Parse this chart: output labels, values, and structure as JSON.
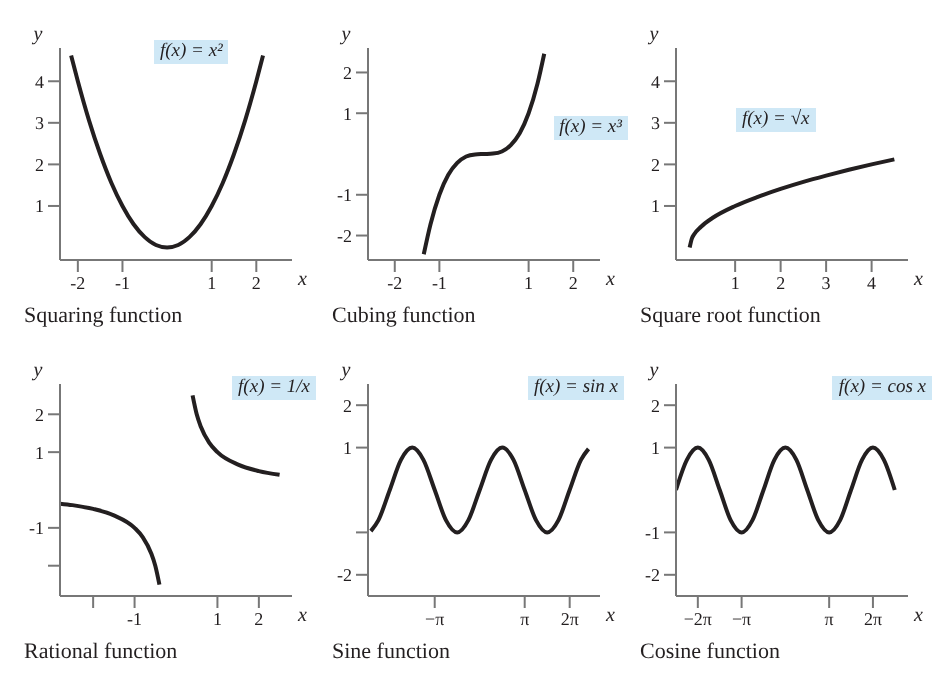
{
  "chart_data": [
    {
      "type": "line",
      "title": "Squaring function",
      "xlabel": "x",
      "ylabel": "y",
      "annotations": [
        "f(x) = x²"
      ],
      "xlim": [
        -2.4,
        2.8
      ],
      "ylim": [
        -0.3,
        4.8
      ],
      "xticks": [
        -2,
        -1,
        1,
        2
      ],
      "yticks": [
        1,
        2,
        3,
        4
      ],
      "series": [
        {
          "color": "#231f20",
          "x": [
            -2.15,
            -2,
            -1.75,
            -1.5,
            -1.25,
            -1,
            -0.75,
            -0.5,
            -0.25,
            0,
            0.25,
            0.5,
            0.75,
            1,
            1.25,
            1.5,
            1.75,
            2,
            2.15
          ],
          "values": [
            4.62,
            4,
            3.06,
            2.25,
            1.56,
            1,
            0.56,
            0.25,
            0.06,
            0,
            0.06,
            0.25,
            0.56,
            1,
            1.56,
            2.25,
            3.06,
            4,
            4.62
          ]
        }
      ]
    },
    {
      "type": "line",
      "title": "Cubing function",
      "xlabel": "x",
      "ylabel": "y",
      "annotations": [
        "f(x) = x³"
      ],
      "xlim": [
        -2.6,
        2.6
      ],
      "ylim": [
        -2.6,
        2.6
      ],
      "xticks": [
        -2,
        -1,
        1,
        2
      ],
      "yticks": [
        -2,
        -1,
        1,
        2
      ],
      "series": [
        {
          "color": "#231f20",
          "x": [
            -1.35,
            -1.2,
            -1,
            -0.8,
            -0.6,
            -0.4,
            -0.2,
            0,
            0.2,
            0.4,
            0.6,
            0.8,
            1,
            1.2,
            1.35
          ],
          "values": [
            -2.46,
            -1.73,
            -1,
            -0.51,
            -0.22,
            -0.06,
            -0.01,
            0,
            0.01,
            0.06,
            0.22,
            0.51,
            1,
            1.73,
            2.46
          ]
        }
      ]
    },
    {
      "type": "line",
      "title": "Square root function",
      "xlabel": "x",
      "ylabel": "y",
      "annotations": [
        "f(x) = √x"
      ],
      "xlim": [
        -0.3,
        4.8
      ],
      "ylim": [
        -0.3,
        4.8
      ],
      "xticks": [
        1,
        2,
        3,
        4
      ],
      "yticks": [
        1,
        2,
        3,
        4
      ],
      "series": [
        {
          "color": "#231f20",
          "x": [
            0,
            0.05,
            0.1,
            0.25,
            0.5,
            1,
            1.5,
            2,
            2.5,
            3,
            3.5,
            4,
            4.5
          ],
          "values": [
            0,
            0.22,
            0.32,
            0.5,
            0.71,
            1,
            1.22,
            1.41,
            1.58,
            1.73,
            1.87,
            2,
            2.12
          ]
        }
      ]
    },
    {
      "type": "line",
      "title": "Rational function",
      "xlabel": "x",
      "ylabel": "y",
      "annotations": [
        "f(x) = 1/x"
      ],
      "xlim": [
        -2.8,
        2.8
      ],
      "ylim": [
        -2.8,
        2.8
      ],
      "xticks": [
        {
          "value": -2,
          "label": null
        },
        -1,
        1,
        2
      ],
      "yticks": [
        {
          "value": -2,
          "label": null
        },
        -1,
        1,
        2
      ],
      "series": [
        {
          "color": "#231f20",
          "x": [
            -2.8,
            -2.5,
            -2,
            -1.5,
            -1,
            -0.8,
            -0.6,
            -0.5,
            -0.4
          ],
          "values": [
            -0.36,
            -0.4,
            -0.5,
            -0.67,
            -1,
            -1.25,
            -1.67,
            -2,
            -2.5
          ]
        },
        {
          "color": "#231f20",
          "x": [
            0.4,
            0.5,
            0.6,
            0.8,
            1,
            1.5,
            2,
            2.5
          ],
          "values": [
            2.5,
            2,
            1.67,
            1.25,
            1,
            0.67,
            0.5,
            0.4
          ]
        }
      ]
    },
    {
      "type": "line",
      "title": "Sine function",
      "xlabel": "x",
      "ylabel": "y",
      "annotations": [
        "f(x) = sin x"
      ],
      "xlim": [
        -7.8,
        8.4
      ],
      "ylim": [
        -2.5,
        2.5
      ],
      "xticks": [
        {
          "value": -3.1416,
          "label": "−π"
        },
        {
          "value": 3.1416,
          "label": "π"
        },
        {
          "value": 6.2832,
          "label": "2π"
        }
      ],
      "yticks": [
        -2,
        {
          "value": -1,
          "label": null
        },
        1,
        2
      ],
      "series": [
        {
          "color": "#231f20",
          "x": [
            -7.6,
            -7.07,
            -6.28,
            -5.5,
            -4.71,
            -3.93,
            -3.14,
            -2.36,
            -1.57,
            -0.79,
            0,
            0.79,
            1.57,
            2.36,
            3.14,
            3.93,
            4.71,
            5.5,
            6.28,
            7.07,
            7.6
          ],
          "values": [
            -0.97,
            -0.71,
            0,
            0.71,
            1,
            0.71,
            0,
            -0.71,
            -1,
            -0.71,
            0,
            0.71,
            1,
            0.71,
            0,
            -0.71,
            -1,
            -0.71,
            0,
            0.71,
            0.97
          ]
        }
      ]
    },
    {
      "type": "line",
      "title": "Cosine function",
      "xlabel": "x",
      "ylabel": "y",
      "annotations": [
        "f(x) = cos x"
      ],
      "xlim": [
        -7.85,
        8.8
      ],
      "ylim": [
        -2.5,
        2.5
      ],
      "xticks": [
        {
          "value": -6.2832,
          "label": "−2π"
        },
        {
          "value": -3.1416,
          "label": "−π"
        },
        {
          "value": 3.1416,
          "label": "π"
        },
        {
          "value": 6.2832,
          "label": "2π"
        }
      ],
      "yticks": [
        -2,
        -1,
        1,
        2
      ],
      "series": [
        {
          "color": "#231f20",
          "x": [
            -7.85,
            -7.07,
            -6.28,
            -5.5,
            -4.71,
            -3.93,
            -3.14,
            -2.36,
            -1.57,
            -0.79,
            0,
            0.79,
            1.57,
            2.36,
            3.14,
            3.93,
            4.71,
            5.5,
            6.28,
            7.07,
            7.85
          ],
          "values": [
            0,
            0.71,
            1,
            0.71,
            0,
            -0.71,
            -1,
            -0.71,
            0,
            0.71,
            1,
            0.71,
            0,
            -0.71,
            -1,
            -0.71,
            0,
            0.71,
            1,
            0.71,
            0
          ]
        }
      ]
    }
  ]
}
